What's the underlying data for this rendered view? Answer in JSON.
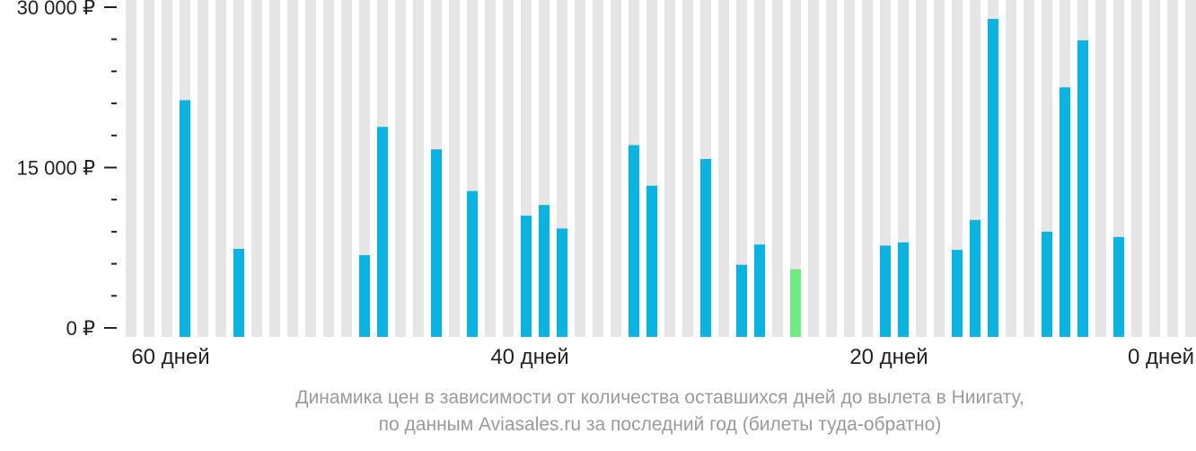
{
  "chart_data": {
    "type": "bar",
    "x": [
      60,
      59,
      58,
      57,
      56,
      55,
      54,
      53,
      52,
      51,
      50,
      49,
      48,
      47,
      46,
      45,
      44,
      43,
      42,
      41,
      40,
      39,
      38,
      37,
      36,
      35,
      34,
      33,
      32,
      31,
      30,
      29,
      28,
      27,
      26,
      25,
      24,
      23,
      22,
      21,
      20,
      19,
      18,
      17,
      16,
      15,
      14,
      13,
      12,
      11,
      10,
      9,
      8,
      7,
      6,
      5,
      4,
      3,
      2,
      1,
      0
    ],
    "values": [
      null,
      null,
      null,
      21300,
      null,
      null,
      7400,
      null,
      null,
      null,
      null,
      null,
      null,
      6800,
      18800,
      null,
      null,
      16700,
      null,
      12800,
      null,
      null,
      10500,
      11500,
      9300,
      null,
      null,
      null,
      17100,
      13300,
      null,
      null,
      15800,
      null,
      5900,
      7800,
      null,
      5500,
      null,
      null,
      null,
      null,
      7700,
      8000,
      null,
      null,
      7300,
      10100,
      28900,
      null,
      null,
      9000,
      22500,
      26900,
      null,
      8500,
      null,
      null,
      null,
      null,
      null
    ],
    "highlight_index": 37,
    "xlim": [
      60,
      0
    ],
    "ylim": [
      0,
      30000
    ],
    "yticks": [
      0,
      15000,
      30000
    ],
    "yticklabels": [
      "0 ₽",
      "15 000 ₽",
      "30 000 ₽"
    ],
    "xticks": [
      60,
      40,
      20,
      0
    ],
    "xticklabels": [
      "60 дней",
      "40 дней",
      "20 дней",
      "0 дней"
    ],
    "colors": {
      "bar": "#09b4e0",
      "highlight": "#71ec82",
      "background_column": "#e6e6e6",
      "axis": "#222222"
    }
  },
  "caption": {
    "line1": "Динамика цен в зависимости от количества оставшихся дней до вылета в Ниигату,",
    "line2": "по данным Aviasales.ru за последний год (билеты туда-обратно)"
  }
}
